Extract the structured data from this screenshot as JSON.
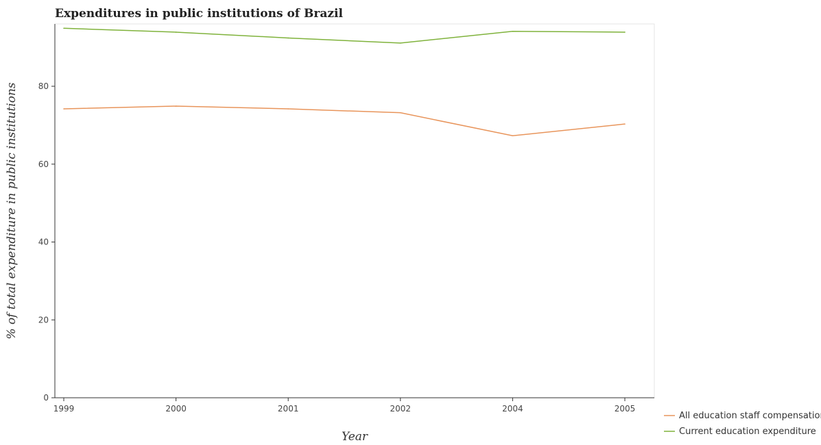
{
  "chart_data": {
    "type": "line",
    "title": "Expenditures in public institutions of Brazil",
    "xlabel": "Year",
    "ylabel": "% of total expenditure in public institutions",
    "categories": [
      "1999",
      "2000",
      "2001",
      "2002",
      "2004",
      "2005"
    ],
    "ylim": [
      0,
      96
    ],
    "yticks": [
      "0",
      "20",
      "40",
      "60",
      "80"
    ],
    "grid": false,
    "legend_position": "bottom-right",
    "series": [
      {
        "name": "All education staff compensation",
        "color": "#e8945a",
        "values": [
          74.2,
          74.9,
          74.2,
          73.2,
          67.3,
          70.3
        ]
      },
      {
        "name": "Current education expenditure",
        "color": "#7fb23b",
        "values": [
          94.9,
          93.9,
          92.4,
          91.1,
          94.1,
          93.9
        ]
      }
    ]
  }
}
